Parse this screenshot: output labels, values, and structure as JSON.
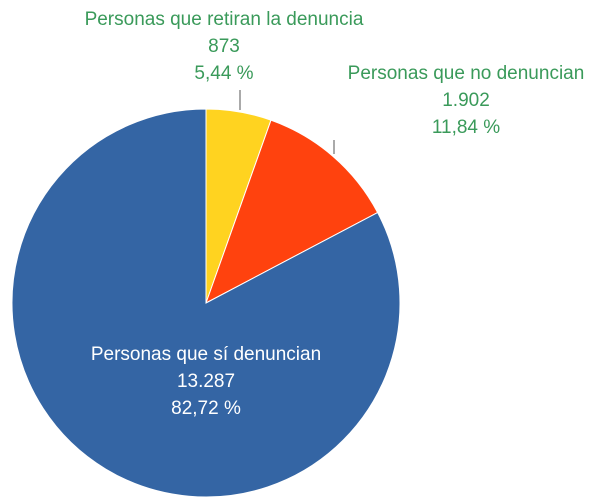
{
  "chart_data": {
    "type": "pie",
    "categories": [
      "Personas que retiran la denuncia",
      "Personas que no denuncian",
      "Personas que sí denuncian"
    ],
    "values": [
      873,
      1902,
      13287
    ],
    "value_labels": [
      "873",
      "1.902",
      "13.287"
    ],
    "percentages": [
      5.44,
      11.84,
      82.72
    ],
    "percentage_labels": [
      "5,44 %",
      "11,84 %",
      "82,72 %"
    ],
    "colors": [
      "#ffd320",
      "#ff420e",
      "#3465a4"
    ],
    "label_color": "#3a9a5a"
  }
}
